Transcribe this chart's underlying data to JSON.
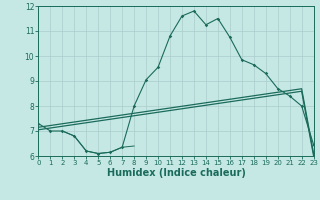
{
  "xlabel": "Humidex (Indice chaleur)",
  "bg_color": "#c6e8e5",
  "line_color": "#1a6b5a",
  "grid_color": "#aaccca",
  "xmin": 0,
  "xmax": 23,
  "ymin": 6,
  "ymax": 12,
  "x_ticks": [
    0,
    1,
    2,
    3,
    4,
    5,
    6,
    7,
    8,
    9,
    10,
    11,
    12,
    13,
    14,
    15,
    16,
    17,
    18,
    19,
    20,
    21,
    22,
    23
  ],
  "y_ticks": [
    6,
    7,
    8,
    9,
    10,
    11,
    12
  ],
  "line1_x": [
    0,
    1,
    2,
    3,
    4,
    5,
    6,
    7,
    8,
    9,
    10,
    11,
    12,
    13,
    14,
    15,
    16,
    17,
    18,
    19,
    20,
    21,
    22,
    23
  ],
  "line1_y": [
    7.3,
    7.0,
    7.0,
    6.8,
    6.2,
    6.1,
    6.15,
    6.35,
    8.0,
    9.05,
    9.55,
    10.8,
    11.6,
    11.8,
    11.25,
    11.5,
    10.75,
    9.85,
    9.65,
    9.3,
    8.7,
    8.4,
    8.0,
    6.45
  ],
  "line2_x": [
    0,
    1,
    2,
    3,
    4,
    5,
    6,
    7,
    8,
    9,
    10,
    11,
    12,
    13,
    14,
    15,
    16,
    17,
    18,
    19,
    20,
    21,
    22,
    23
  ],
  "line2_y": [
    7.15,
    7.22,
    7.29,
    7.36,
    7.43,
    7.5,
    7.57,
    7.64,
    7.71,
    7.78,
    7.85,
    7.92,
    7.99,
    8.06,
    8.13,
    8.2,
    8.27,
    8.34,
    8.41,
    8.48,
    8.55,
    8.62,
    8.69,
    6.1
  ],
  "line3_x": [
    0,
    1,
    2,
    3,
    4,
    5,
    6,
    7,
    8,
    9,
    10,
    11,
    12,
    13,
    14,
    15,
    16,
    17,
    18,
    19,
    20,
    21,
    22,
    23
  ],
  "line3_y": [
    7.05,
    7.12,
    7.19,
    7.26,
    7.33,
    7.4,
    7.47,
    7.54,
    7.61,
    7.68,
    7.75,
    7.82,
    7.89,
    7.96,
    8.03,
    8.1,
    8.17,
    8.24,
    8.31,
    8.38,
    8.45,
    8.52,
    8.59,
    6.0
  ],
  "line4_x": [
    2,
    3,
    4,
    5,
    6,
    7,
    8
  ],
  "line4_y": [
    7.0,
    6.8,
    6.2,
    6.1,
    6.15,
    6.35,
    6.4
  ]
}
